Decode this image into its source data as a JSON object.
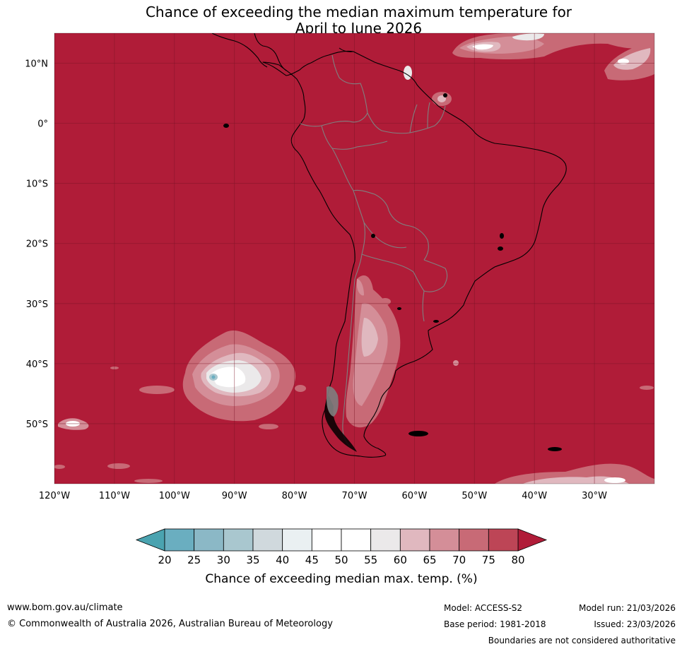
{
  "title_line1": "Chance of exceeding the median maximum temperature for",
  "title_line2": "April to June 2026",
  "map": {
    "lon_range": [
      -120,
      -20
    ],
    "lat_range": [
      -60,
      15
    ],
    "lat_ticks": [
      {
        "value": 10,
        "label": "10°N"
      },
      {
        "value": 0,
        "label": "0°"
      },
      {
        "value": -10,
        "label": "10°S"
      },
      {
        "value": -20,
        "label": "20°S"
      },
      {
        "value": -30,
        "label": "30°S"
      },
      {
        "value": -40,
        "label": "40°S"
      },
      {
        "value": -50,
        "label": "50°S"
      }
    ],
    "lon_ticks": [
      {
        "value": -120,
        "label": "120°W"
      },
      {
        "value": -110,
        "label": "110°W"
      },
      {
        "value": -100,
        "label": "100°W"
      },
      {
        "value": -90,
        "label": "90°W"
      },
      {
        "value": -80,
        "label": "80°W"
      },
      {
        "value": -70,
        "label": "70°W"
      },
      {
        "value": -60,
        "label": "60°W"
      },
      {
        "value": -50,
        "label": "50°W"
      },
      {
        "value": -40,
        "label": "40°W"
      },
      {
        "value": -30,
        "label": "30°W"
      }
    ]
  },
  "colorbar": {
    "label": "Chance of exceeding median max. temp. (%)",
    "ticks": [
      "20",
      "25",
      "30",
      "35",
      "40",
      "45",
      "50",
      "55",
      "60",
      "65",
      "70",
      "75",
      "80"
    ],
    "under_color": "#4aa3b0",
    "over_color": "#b01c38",
    "colors": [
      "#6aaec0",
      "#8bb8c6",
      "#a9c7cf",
      "#d0d9dd",
      "#eaf0f2",
      "#ffffff",
      "#ffffff",
      "#ebe9ea",
      "#e0b8bf",
      "#d48e98",
      "#c86a76",
      "#bd4556"
    ]
  },
  "colors": {
    "background": "#b01c38",
    "coast": "#000000",
    "borders": "#808080",
    "grid": "#7a1426"
  },
  "footer": {
    "url": "www.bom.gov.au/climate",
    "copyright": "© Commonwealth of Australia 2026, Australian Bureau of Meteorology",
    "model": "Model: ACCESS-S2",
    "base_period": "Base period: 1981-2018",
    "model_run": "Model run: 21/03/2026",
    "issued": "Issued: 23/03/2026",
    "disclaimer": "Boundaries are not considered authoritative"
  }
}
